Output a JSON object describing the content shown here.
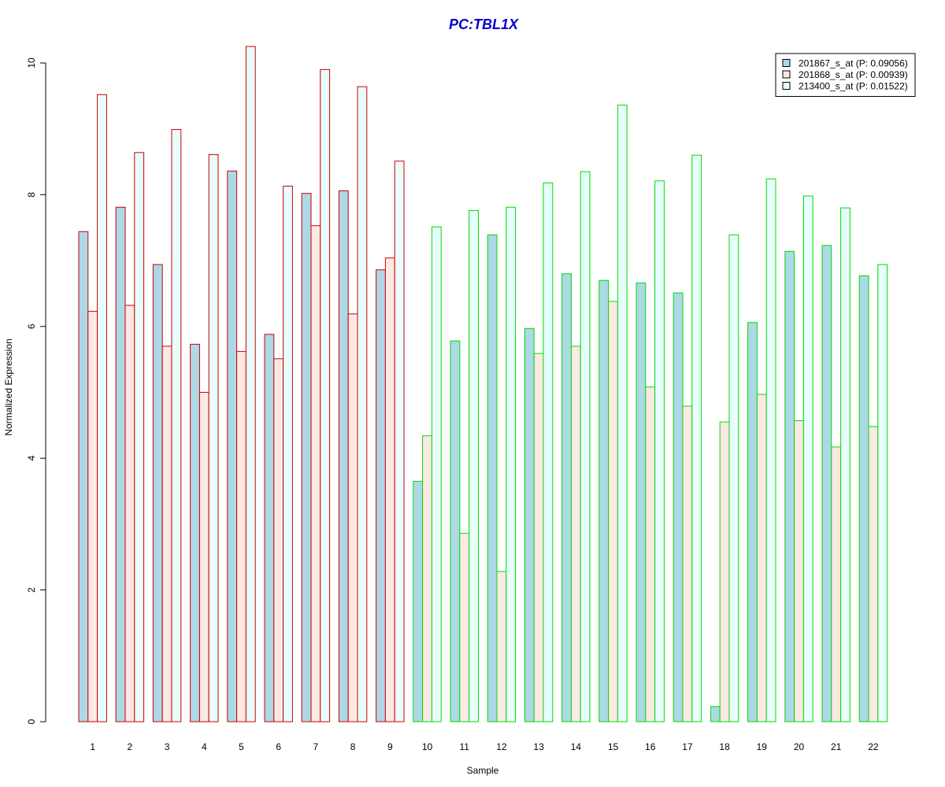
{
  "chart_data": {
    "type": "bar",
    "title": "PC:TBL1X",
    "title_color": "#0000CC",
    "xlabel": "Sample",
    "ylabel": "Normalized Expression",
    "ylim": [
      0,
      10.5
    ],
    "yticks": [
      0,
      2,
      4,
      6,
      8,
      10
    ],
    "grid": false,
    "legend_position": "top-right",
    "categories": [
      "1",
      "2",
      "3",
      "4",
      "5",
      "6",
      "7",
      "8",
      "9",
      "10",
      "11",
      "12",
      "13",
      "14",
      "15",
      "16",
      "17",
      "18",
      "19",
      "20",
      "21",
      "22"
    ],
    "group_border_colors": [
      "#CC0000",
      "#CC0000",
      "#CC0000",
      "#CC0000",
      "#CC0000",
      "#CC0000",
      "#CC0000",
      "#CC0000",
      "#CC0000",
      "#00DD00",
      "#00DD00",
      "#00DD00",
      "#00DD00",
      "#00DD00",
      "#00DD00",
      "#00DD00",
      "#00DD00",
      "#00DD00",
      "#00DD00",
      "#00DD00",
      "#00DD00",
      "#00DD00"
    ],
    "series": [
      {
        "name": "201867_s_at (P: 0.09056)",
        "fill": "#ADD8E6",
        "values": [
          7.44,
          7.81,
          6.94,
          5.73,
          8.36,
          5.88,
          8.02,
          8.06,
          6.86,
          3.65,
          5.78,
          7.39,
          5.97,
          6.8,
          6.7,
          6.66,
          6.51,
          0.23,
          6.06,
          7.14,
          7.23,
          6.77
        ]
      },
      {
        "name": "201868_s_at (P: 0.00939)",
        "fill": "#FDE8E4",
        "values": [
          6.23,
          6.32,
          5.7,
          5.0,
          5.62,
          5.51,
          7.53,
          6.19,
          7.04,
          4.34,
          2.86,
          2.28,
          5.59,
          5.7,
          6.38,
          5.08,
          4.79,
          4.55,
          4.97,
          4.57,
          4.17,
          4.48
        ]
      },
      {
        "name": "213400_s_at (P: 0.01522)",
        "fill": "#E8FEFC",
        "values": [
          9.52,
          8.64,
          8.99,
          8.61,
          10.25,
          8.13,
          9.9,
          9.64,
          8.51,
          7.51,
          7.76,
          7.81,
          8.18,
          8.35,
          9.36,
          8.21,
          8.6,
          7.39,
          8.24,
          7.98,
          7.8,
          6.94
        ]
      }
    ]
  }
}
